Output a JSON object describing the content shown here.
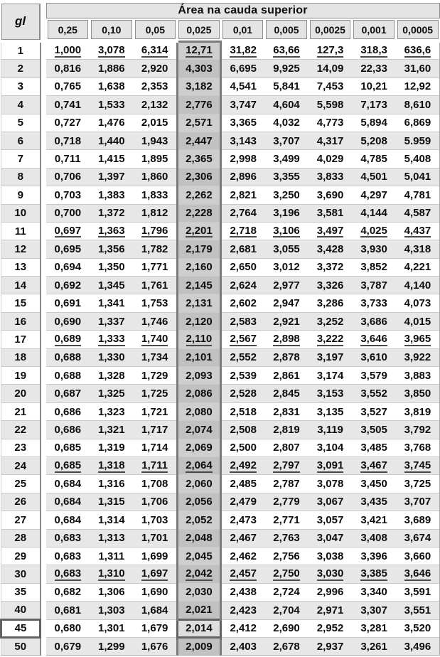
{
  "table": {
    "corner_label": "gl",
    "title": "Área na cauda superior",
    "columns": [
      "0,25",
      "0,10",
      "0,05",
      "0,025",
      "0,01",
      "0,005",
      "0,0025",
      "0,001",
      "0,0005"
    ],
    "highlight_column": "0,025",
    "highlight_row_gl": "45",
    "highlight_value": "2,014",
    "rows": [
      {
        "gl": "1",
        "values": [
          "1,000",
          "3,078",
          "6,314",
          "12,71",
          "31,82",
          "63,66",
          "127,3",
          "318,3",
          "636,6"
        ],
        "underline": true
      },
      {
        "gl": "2",
        "values": [
          "0,816",
          "1,886",
          "2,920",
          "4,303",
          "6,695",
          "9,925",
          "14,09",
          "22,33",
          "31,60"
        ]
      },
      {
        "gl": "3",
        "values": [
          "0,765",
          "1,638",
          "2,353",
          "3,182",
          "4,541",
          "5,841",
          "7,453",
          "10,21",
          "12,92"
        ]
      },
      {
        "gl": "4",
        "values": [
          "0,741",
          "1,533",
          "2,132",
          "2,776",
          "3,747",
          "4,604",
          "5,598",
          "7,173",
          "8,610"
        ]
      },
      {
        "gl": "5",
        "values": [
          "0,727",
          "1,476",
          "2,015",
          "2,571",
          "3,365",
          "4,032",
          "4,773",
          "5,894",
          "6,869"
        ]
      },
      {
        "gl": "6",
        "values": [
          "0,718",
          "1,440",
          "1,943",
          "2,447",
          "3,143",
          "3,707",
          "4,317",
          "5,208",
          "5.959"
        ]
      },
      {
        "gl": "7",
        "values": [
          "0,711",
          "1,415",
          "1,895",
          "2,365",
          "2,998",
          "3,499",
          "4,029",
          "4,785",
          "5,408"
        ]
      },
      {
        "gl": "8",
        "values": [
          "0,706",
          "1,397",
          "1,860",
          "2,306",
          "2,896",
          "3,355",
          "3,833",
          "4,501",
          "5,041"
        ]
      },
      {
        "gl": "9",
        "values": [
          "0,703",
          "1,383",
          "1,833",
          "2,262",
          "2,821",
          "3,250",
          "3,690",
          "4,297",
          "4,781"
        ]
      },
      {
        "gl": "10",
        "values": [
          "0,700",
          "1,372",
          "1,812",
          "2,228",
          "2,764",
          "3,196",
          "3,581",
          "4,144",
          "4,587"
        ]
      },
      {
        "gl": "11",
        "values": [
          "0,697",
          "1,363",
          "1,796",
          "2,201",
          "2,718",
          "3,106",
          "3,497",
          "4,025",
          "4,437"
        ],
        "underline": true
      },
      {
        "gl": "12",
        "values": [
          "0,695",
          "1,356",
          "1,782",
          "2,179",
          "2,681",
          "3,055",
          "3,428",
          "3,930",
          "4,318"
        ]
      },
      {
        "gl": "13",
        "values": [
          "0,694",
          "1,350",
          "1,771",
          "2,160",
          "2,650",
          "3,012",
          "3,372",
          "3,852",
          "4,221"
        ]
      },
      {
        "gl": "14",
        "values": [
          "0,692",
          "1,345",
          "1,761",
          "2,145",
          "2,624",
          "2,977",
          "3,326",
          "3,787",
          "4,140"
        ]
      },
      {
        "gl": "15",
        "values": [
          "0,691",
          "1,341",
          "1,753",
          "2,131",
          "2,602",
          "2,947",
          "3,286",
          "3,733",
          "4,073"
        ]
      },
      {
        "gl": "16",
        "values": [
          "0,690",
          "1,337",
          "1,746",
          "2,120",
          "2,583",
          "2,921",
          "3,252",
          "3,686",
          "4,015"
        ]
      },
      {
        "gl": "17",
        "values": [
          "0,689",
          "1,333",
          "1,740",
          "2,110",
          "2,567",
          "2,898",
          "3,222",
          "3,646",
          "3,965"
        ],
        "underline": true
      },
      {
        "gl": "18",
        "values": [
          "0,688",
          "1,330",
          "1,734",
          "2,101",
          "2,552",
          "2,878",
          "3,197",
          "3,610",
          "3,922"
        ]
      },
      {
        "gl": "19",
        "values": [
          "0,688",
          "1,328",
          "1,729",
          "2,093",
          "2,539",
          "2,861",
          "3,174",
          "3,579",
          "3,883"
        ]
      },
      {
        "gl": "20",
        "values": [
          "0,687",
          "1,325",
          "1,725",
          "2,086",
          "2,528",
          "2,845",
          "3,153",
          "3,552",
          "3,850"
        ]
      },
      {
        "gl": "21",
        "values": [
          "0,686",
          "1,323",
          "1,721",
          "2,080",
          "2,518",
          "2,831",
          "3,135",
          "3,527",
          "3,819"
        ]
      },
      {
        "gl": "22",
        "values": [
          "0,686",
          "1,321",
          "1,717",
          "2,074",
          "2,508",
          "2,819",
          "3,119",
          "3,505",
          "3,792"
        ]
      },
      {
        "gl": "23",
        "values": [
          "0,685",
          "1,319",
          "1,714",
          "2,069",
          "2,500",
          "2,807",
          "3,104",
          "3,485",
          "3,768"
        ]
      },
      {
        "gl": "24",
        "values": [
          "0,685",
          "1,318",
          "1,711",
          "2,064",
          "2,492",
          "2,797",
          "3,091",
          "3,467",
          "3,745"
        ],
        "underline": true
      },
      {
        "gl": "25",
        "values": [
          "0,684",
          "1,316",
          "1,708",
          "2,060",
          "2,485",
          "2,787",
          "3,078",
          "3,450",
          "3,725"
        ]
      },
      {
        "gl": "26",
        "values": [
          "0,684",
          "1,315",
          "1,706",
          "2,056",
          "2,479",
          "2,779",
          "3,067",
          "3,435",
          "3,707"
        ]
      },
      {
        "gl": "27",
        "values": [
          "0,684",
          "1,314",
          "1,703",
          "2,052",
          "2,473",
          "2,771",
          "3,057",
          "3,421",
          "3,689"
        ]
      },
      {
        "gl": "28",
        "values": [
          "0,683",
          "1,313",
          "1,701",
          "2,048",
          "2,467",
          "2,763",
          "3,047",
          "3,408",
          "3,674"
        ]
      },
      {
        "gl": "29",
        "values": [
          "0,683",
          "1,311",
          "1,699",
          "2,045",
          "2,462",
          "2,756",
          "3,038",
          "3,396",
          "3,660"
        ]
      },
      {
        "gl": "30",
        "values": [
          "0,683",
          "1,310",
          "1,697",
          "2,042",
          "2,457",
          "2,750",
          "3,030",
          "3,385",
          "3,646"
        ],
        "underline": true
      },
      {
        "gl": "35",
        "values": [
          "0,682",
          "1,306",
          "1,690",
          "2,030",
          "2,438",
          "2,724",
          "2,996",
          "3,340",
          "3,591"
        ]
      },
      {
        "gl": "40",
        "values": [
          "0,681",
          "1,303",
          "1,684",
          "2,021",
          "2,423",
          "2,704",
          "2,971",
          "3,307",
          "3,551"
        ]
      },
      {
        "gl": "45",
        "values": [
          "0,680",
          "1,301",
          "1,679",
          "2,014",
          "2,412",
          "2,690",
          "2,952",
          "3,281",
          "3,520"
        ]
      },
      {
        "gl": "50",
        "values": [
          "0,679",
          "1,299",
          "1,676",
          "2,009",
          "2,403",
          "2,678",
          "2,937",
          "3,261",
          "3,496"
        ]
      }
    ]
  },
  "colors": {
    "header_fill": "#e4e4e4",
    "header_border": "#8e8e8e",
    "stripe": "#e7e7e7",
    "grid_line": "#c9c9c9",
    "gutter_line": "#8a8a8a",
    "column_fill_light": "#cecece",
    "column_fill_dark": "#c1c1c1",
    "column_border": "#7a7a7a",
    "focus_border": "#636363",
    "focus_fill": "#dedede"
  }
}
